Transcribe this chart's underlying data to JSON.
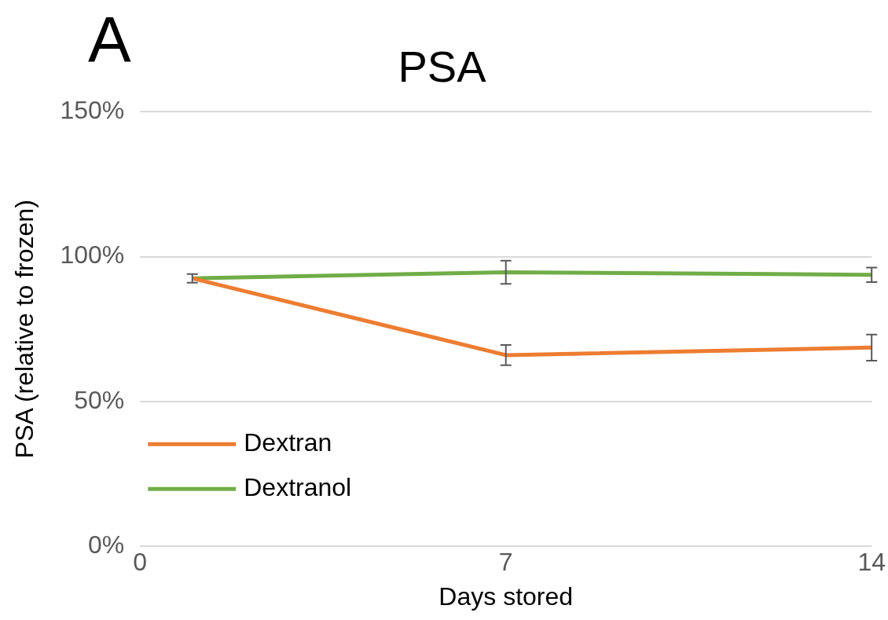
{
  "chart_data": {
    "type": "line",
    "title": "PSA",
    "xlabel": "Days stored",
    "ylabel": "PSA (relative to frozen)",
    "annotations": [
      "A"
    ],
    "x": [
      1,
      7,
      14
    ],
    "series": [
      {
        "name": "Dextran",
        "color": "#ed7d31",
        "values": [
          92.5,
          66,
          68.6
        ],
        "errors": [
          null,
          3.5,
          4.5
        ]
      },
      {
        "name": "Dextranol",
        "color": "#70ad47",
        "values": [
          92.5,
          94.6,
          93.7
        ],
        "errors": [
          1.5,
          4,
          2.5
        ]
      }
    ],
    "xlim": [
      0,
      14
    ],
    "xticks": [
      0,
      7,
      14
    ],
    "ylim": [
      0,
      150
    ],
    "yticks": [
      {
        "value": 0,
        "label": "0%"
      },
      {
        "value": 50,
        "label": "50%"
      },
      {
        "value": 100,
        "label": "100%"
      },
      {
        "value": 150,
        "label": "150%"
      }
    ],
    "grid": "y",
    "legend": "bottom left",
    "marker": "none",
    "line_style": "solid"
  }
}
